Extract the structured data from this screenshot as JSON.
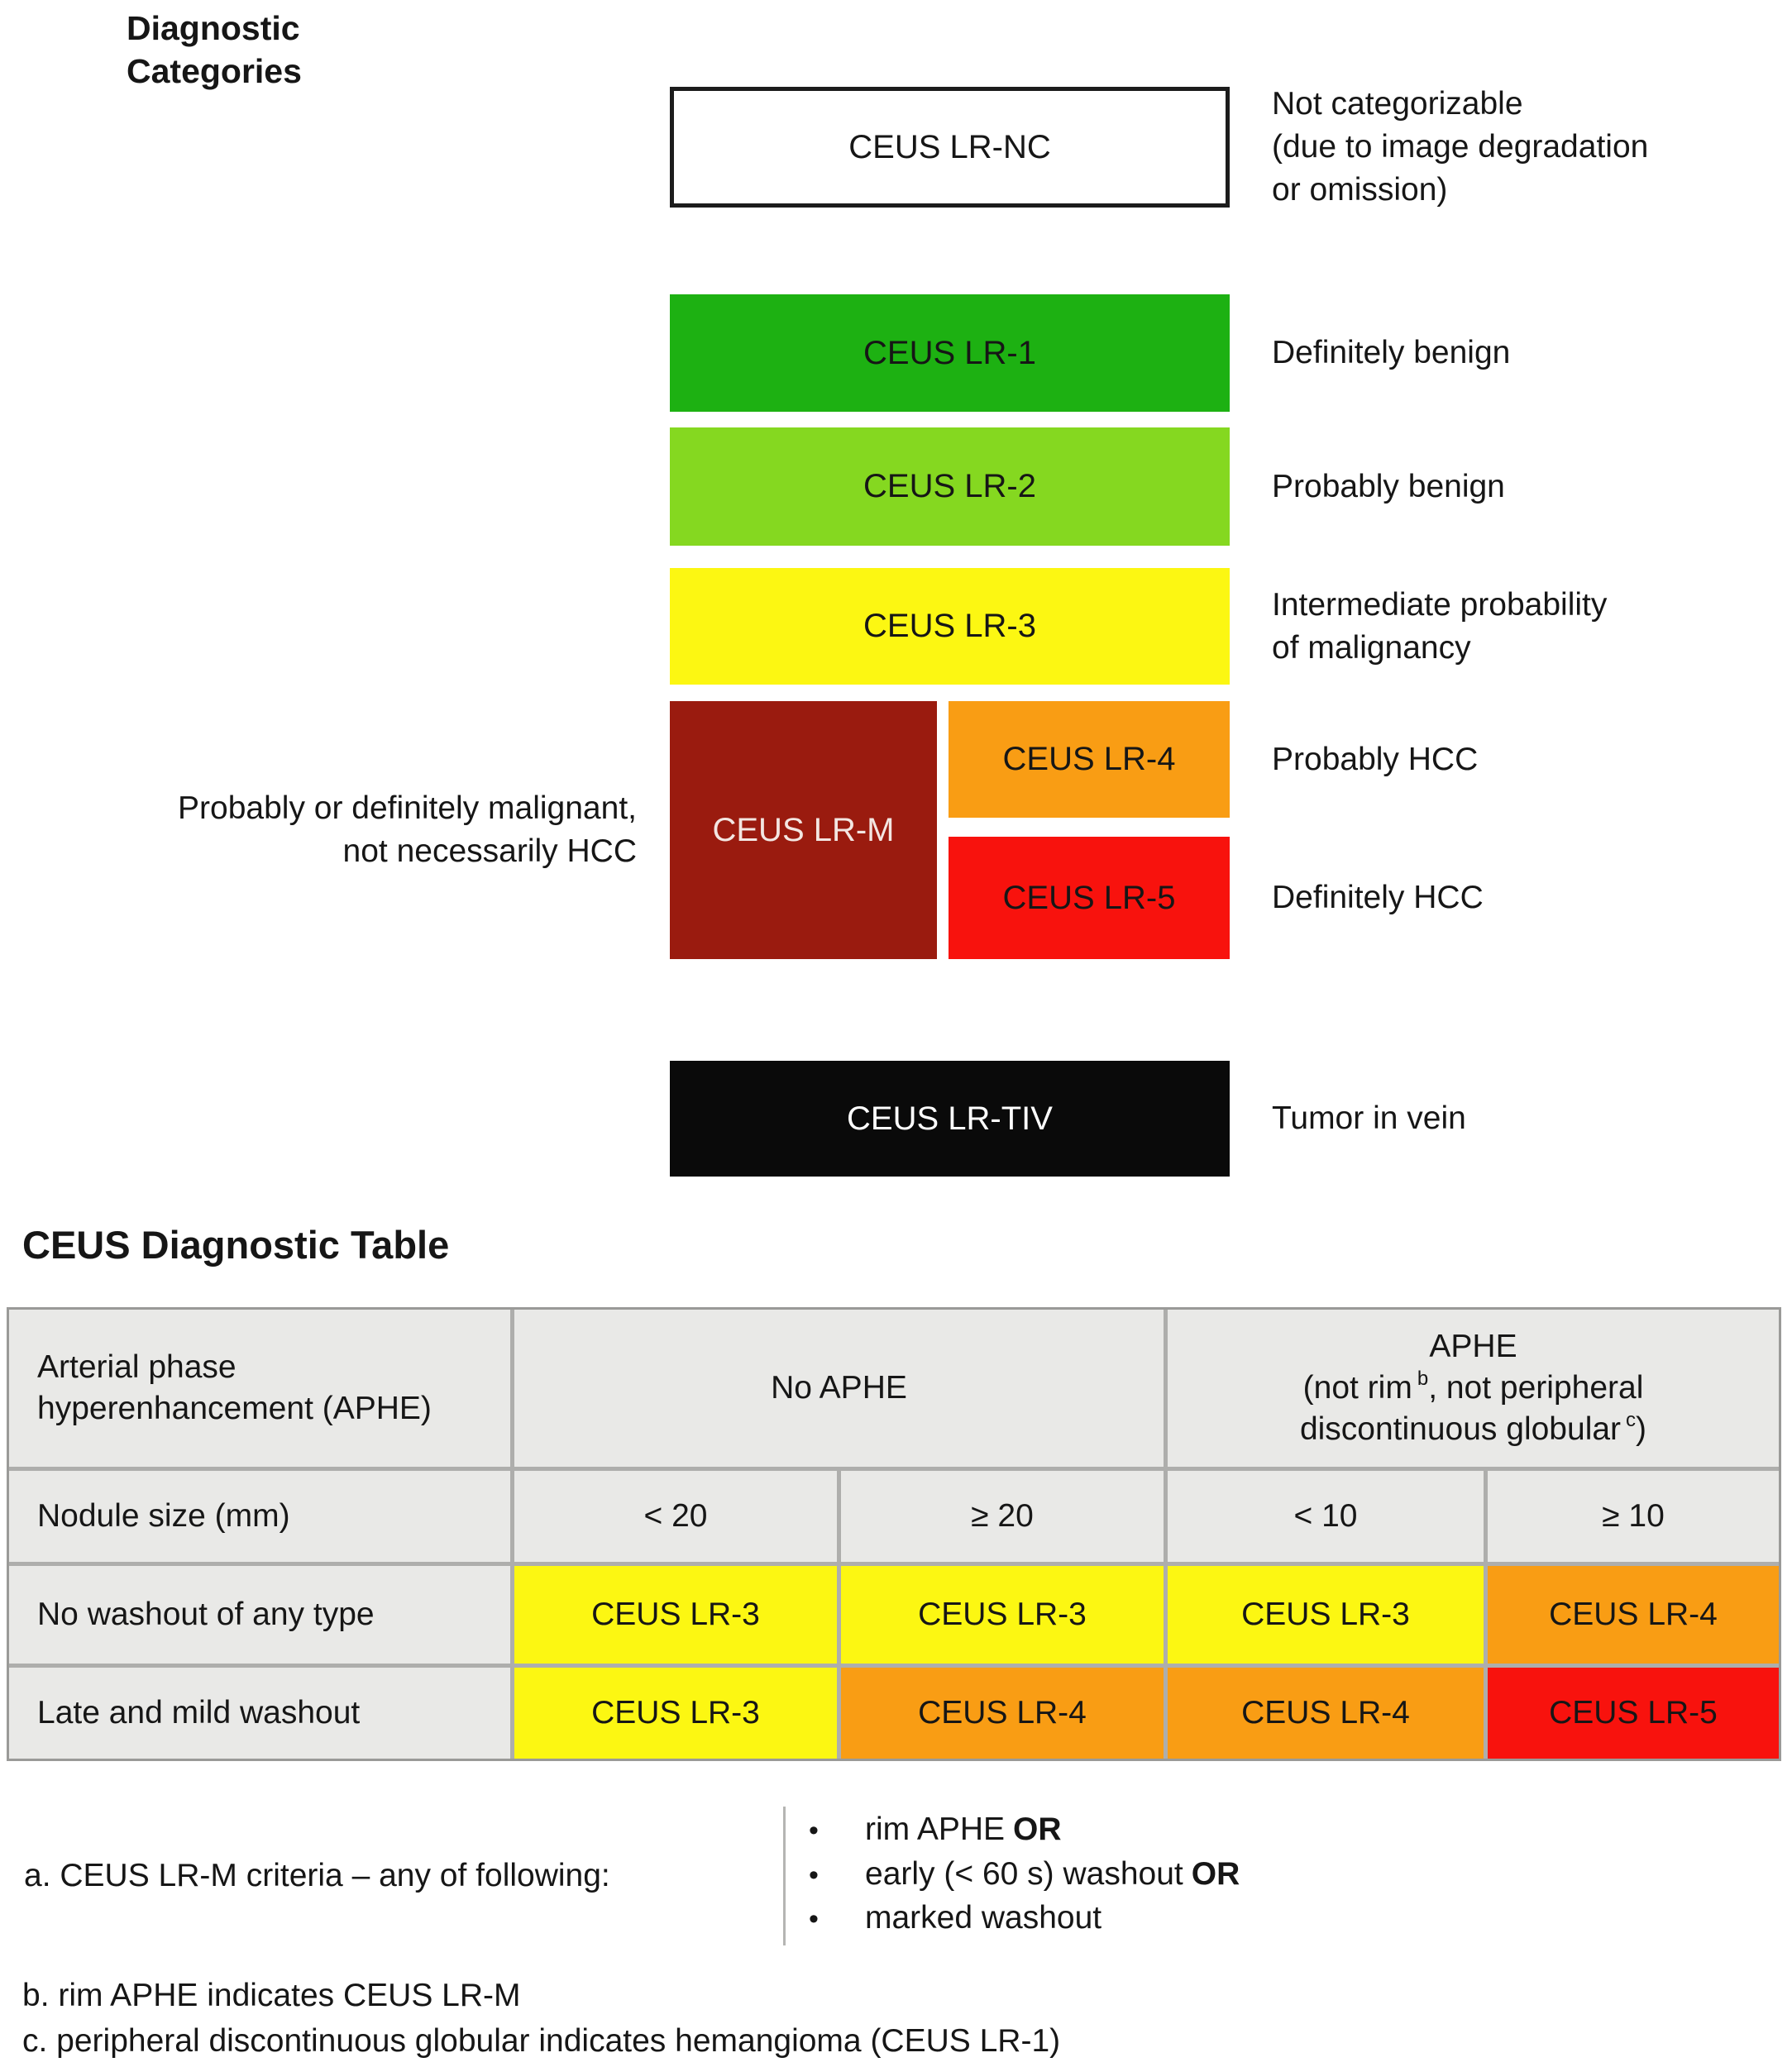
{
  "diagram": {
    "title": "Diagnostic\nCategories",
    "nc": {
      "label": "CEUS LR-NC",
      "desc": "Not categorizable\n(due to image degradation\nor omission)",
      "bg": "#ffffff"
    },
    "lr1": {
      "label": "CEUS LR-1",
      "desc": "Definitely benign",
      "bg": "#1db112"
    },
    "lr2": {
      "label": "CEUS LR-2",
      "desc": "Probably benign",
      "bg": "#85d820"
    },
    "lr3": {
      "label": "CEUS LR-3",
      "desc": "Intermediate probability\nof malignancy",
      "bg": "#fcf712"
    },
    "lrm": {
      "label": "CEUS LR-M",
      "desc": "Probably or definitely malignant,\nnot necessarily HCC",
      "bg": "#9a1b0f"
    },
    "lr4": {
      "label": "CEUS LR-4",
      "desc": "Probably HCC",
      "bg": "#f99d14"
    },
    "lr5": {
      "label": "CEUS LR-5",
      "desc": "Definitely HCC",
      "bg": "#f8120d"
    },
    "lrtiv": {
      "label": "CEUS LR-TIV",
      "desc": "Tumor in vein",
      "bg": "#0a0a0a"
    }
  },
  "table": {
    "heading": "CEUS Diagnostic Table",
    "aphe_row_label": "Arterial phase\nhyperenhancement (APHE)",
    "no_aphe_header": "No APHE",
    "aphe_header_line1": "APHE",
    "aphe_header_line2_pre": "(not rim",
    "aphe_header_line2_sup": "b",
    "aphe_header_line2_post": ", not peripheral",
    "aphe_header_line3_pre": "discontinuous globular",
    "aphe_header_line3_sup": "c",
    "aphe_header_line3_post": ")",
    "size_row_label": "Nodule size (mm)",
    "size_cols": [
      "< 20",
      "≥ 20",
      "< 10",
      "≥ 10"
    ],
    "rows": [
      {
        "label": "No washout of any type",
        "cells": [
          {
            "text": "CEUS LR-3",
            "bg": "#fcf712"
          },
          {
            "text": "CEUS LR-3",
            "bg": "#fcf712"
          },
          {
            "text": "CEUS LR-3",
            "bg": "#fcf712"
          },
          {
            "text": "CEUS LR-4",
            "bg": "#f99d14"
          }
        ]
      },
      {
        "label": "Late and mild washout",
        "cells": [
          {
            "text": "CEUS LR-3",
            "bg": "#fcf712"
          },
          {
            "text": "CEUS LR-4",
            "bg": "#f99d14"
          },
          {
            "text": "CEUS LR-4",
            "bg": "#f99d14"
          },
          {
            "text": "CEUS LR-5",
            "bg": "#f8120d"
          }
        ]
      }
    ],
    "label_cell_bg": "#e9e9e7",
    "grid_line_color": "#aeaeac"
  },
  "footnotes": {
    "bullet_glyph": "•",
    "a_label": "a. CEUS LR-M criteria – any of following:",
    "a_bullets": [
      {
        "text": "rim APHE",
        "bold": "OR"
      },
      {
        "text": "early (< 60 s) washout",
        "bold": "OR"
      },
      {
        "text": "marked washout",
        "bold": ""
      }
    ],
    "b": "b. rim APHE indicates CEUS LR-M",
    "c": "c. peripheral discontinuous globular indicates hemangioma (CEUS LR-1)"
  }
}
